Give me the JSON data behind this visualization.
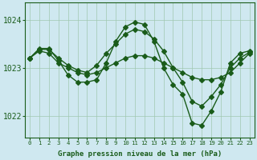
{
  "bg_color": "#cfe8f0",
  "line_color": "#1a5c1a",
  "grid_color": "#a0c8b0",
  "xlabel": "Graphe pression niveau de la mer (hPa)",
  "xlim": [
    -0.5,
    23.5
  ],
  "ylim": [
    1021.55,
    1024.35
  ],
  "yticks": [
    1022,
    1023,
    1024
  ],
  "xticks": [
    0,
    1,
    2,
    3,
    4,
    5,
    6,
    7,
    8,
    9,
    10,
    11,
    12,
    13,
    14,
    15,
    16,
    17,
    18,
    19,
    20,
    21,
    22,
    23
  ],
  "series": [
    {
      "x": [
        0,
        1,
        2,
        3,
        4,
        5,
        6,
        7,
        8,
        9,
        10,
        11,
        12,
        13,
        14,
        15,
        16,
        17,
        18,
        19,
        20,
        21,
        22,
        23
      ],
      "y": [
        1023.2,
        1023.4,
        1023.4,
        1023.15,
        1022.85,
        1022.7,
        1022.7,
        1022.75,
        1023.1,
        1023.55,
        1023.85,
        1023.95,
        1023.9,
        1023.55,
        1023.0,
        1022.65,
        1022.45,
        1021.85,
        1021.8,
        1022.1,
        1022.5,
        1023.1,
        1023.3,
        1023.35
      ]
    },
    {
      "x": [
        0,
        1,
        2,
        3,
        4,
        5,
        6,
        7,
        8,
        9,
        10,
        11,
        12,
        13,
        14,
        15,
        16,
        17,
        18,
        19,
        20,
        21,
        22,
        23
      ],
      "y": [
        1023.2,
        1023.35,
        1023.3,
        1023.1,
        1023.0,
        1022.9,
        1022.85,
        1022.9,
        1023.0,
        1023.1,
        1023.2,
        1023.25,
        1023.25,
        1023.2,
        1023.1,
        1023.0,
        1022.9,
        1022.8,
        1022.75,
        1022.75,
        1022.8,
        1022.9,
        1023.1,
        1023.3
      ]
    },
    {
      "x": [
        0,
        1,
        2,
        3,
        4,
        5,
        6,
        7,
        8,
        9,
        10,
        11,
        12,
        13,
        14,
        15,
        16,
        17,
        18,
        19,
        20,
        21,
        22,
        23
      ],
      "y": [
        1023.2,
        1023.38,
        1023.38,
        1023.2,
        1023.05,
        1022.95,
        1022.9,
        1023.05,
        1023.3,
        1023.5,
        1023.7,
        1023.8,
        1023.75,
        1023.6,
        1023.35,
        1023.0,
        1022.7,
        1022.3,
        1022.2,
        1022.4,
        1022.65,
        1023.0,
        1023.2,
        1023.32
      ]
    }
  ],
  "marker_size": 3.0,
  "line_width": 1.0,
  "font_size_label": 6.5,
  "font_size_ytick": 7,
  "font_size_xtick": 5.2
}
